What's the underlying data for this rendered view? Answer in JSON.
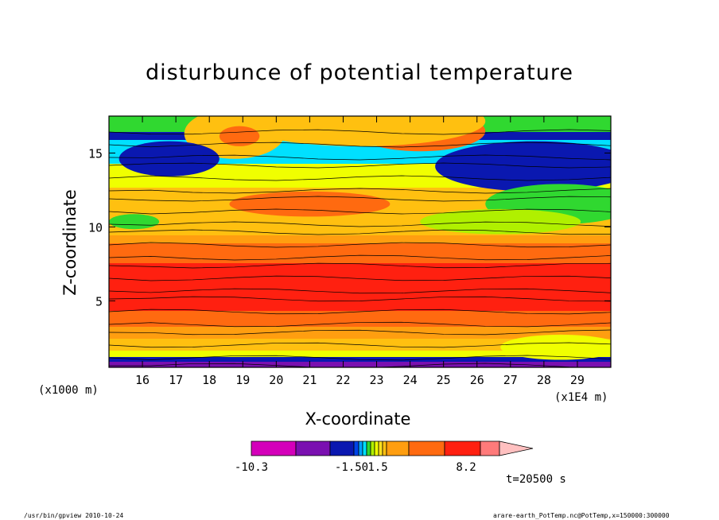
{
  "chart_data": {
    "type": "heatmap",
    "title": "disturbunce of potential temperature",
    "xlabel": "X-coordinate",
    "ylabel": "Z-coordinate",
    "x_unit_label": "(x1000 m)",
    "x_multiplier_label": "(x1E4 m)",
    "time_label": "t=20500 s",
    "xlim": [
      15,
      30
    ],
    "ylim": [
      0.5,
      17.5
    ],
    "xticks": [
      "16",
      "17",
      "18",
      "19",
      "20",
      "21",
      "22",
      "23",
      "24",
      "25",
      "26",
      "27",
      "28",
      "29"
    ],
    "yticks": [
      "5",
      "10",
      "15"
    ],
    "colorbar": {
      "tick_labels": [
        "-10.3",
        "-1.50",
        "1.5",
        "8.2"
      ],
      "colors": [
        "#d400ba",
        "#7a10b0",
        "#0a18b0",
        "#0044e8",
        "#00a0ff",
        "#00e0ff",
        "#30d830",
        "#b0f000",
        "#f0ff00",
        "#ffe020",
        "#ffc010",
        "#ff9e10",
        "#ff6a10",
        "#ff2010",
        "#ff7a7a",
        "#ffc0c0"
      ]
    },
    "description_levels": "filled contours of theta disturbance",
    "notes": []
  },
  "footer": {
    "left": "/usr/bin/gpview   2010-10-24",
    "right": "arare-earth_PotTemp.nc@PotTemp,x=150000:300000"
  },
  "colors": {
    "magenta": "#d400ba",
    "purple": "#7a10b0",
    "navy": "#0a18b0",
    "blue": "#0044e8",
    "lightblue": "#00a0ff",
    "cyan": "#00e0ff",
    "green": "#30d830",
    "yellowgreen": "#b0f000",
    "yellow": "#f0ff00",
    "lightorange": "#ffc010",
    "orange": "#ff9e10",
    "darkorange": "#ff6a10",
    "red": "#ff2010",
    "pink": "#ff7a7a",
    "lightpink": "#ffc0c0"
  }
}
